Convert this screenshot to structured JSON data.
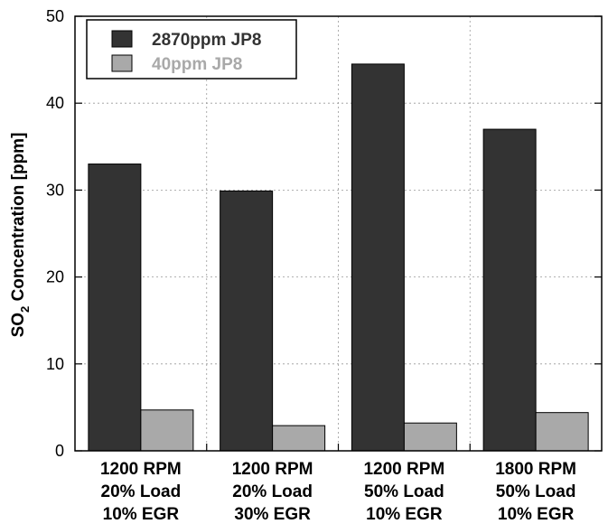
{
  "chart_data": {
    "type": "bar",
    "ylabel_main": "SO",
    "ylabel_sub": "2",
    "ylabel_rest": " Concentration [ppm]",
    "ylim": [
      0,
      50
    ],
    "yticks": [
      "0",
      "10",
      "20",
      "30",
      "40",
      "50"
    ],
    "categories": [
      [
        "1200 RPM",
        "20% Load",
        "10% EGR"
      ],
      [
        "1200 RPM",
        "20% Load",
        "30% EGR"
      ],
      [
        "1200 RPM",
        "50% Load",
        "10% EGR"
      ],
      [
        "1800 RPM",
        "50% Load",
        "10% EGR"
      ]
    ],
    "series": [
      {
        "name": "2870ppm JP8",
        "values": [
          33.0,
          29.9,
          44.5,
          37.0
        ]
      },
      {
        "name": "40ppm JP8",
        "values": [
          4.7,
          2.9,
          3.2,
          4.4
        ]
      }
    ],
    "grid": true,
    "legend_position": "top-left",
    "colors": {
      "series0": "#333333",
      "series1": "#a9a9a9",
      "legend_text1": "#a9a9a9",
      "legend_text0": "#333333"
    }
  }
}
